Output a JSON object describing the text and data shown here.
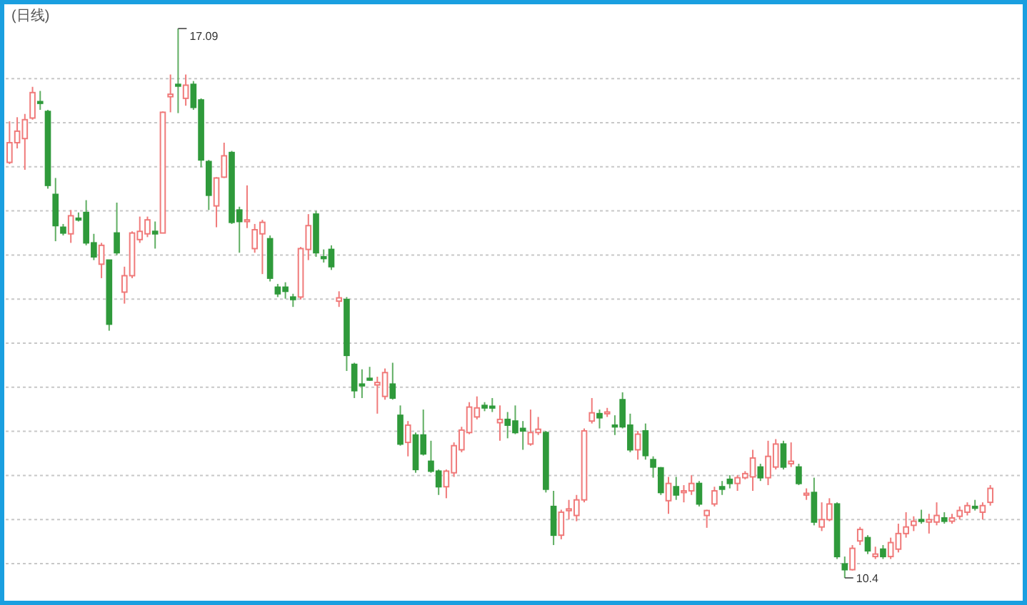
{
  "chart_data": {
    "type": "candlestick",
    "title": "(日线)",
    "grid": "y",
    "annotations": [
      "17.09",
      "10.4"
    ],
    "categories": [
      null,
      null,
      null,
      null,
      null,
      null,
      null,
      null,
      null,
      null,
      null,
      null,
      null,
      null,
      null,
      null,
      null,
      null,
      null,
      null,
      null,
      null,
      null,
      null,
      null,
      null,
      null,
      null,
      null,
      null,
      null,
      null,
      null,
      null,
      null,
      null,
      null,
      null,
      null,
      null,
      null,
      null,
      null,
      null,
      null,
      null,
      null,
      null,
      null,
      null,
      null,
      null,
      null,
      null,
      null,
      null,
      null,
      null,
      null,
      null,
      null,
      null,
      null,
      null,
      null,
      null,
      null,
      null,
      null,
      null,
      null,
      null,
      null,
      null,
      null,
      null,
      null,
      null,
      null,
      null,
      null,
      null,
      null,
      null,
      null,
      null,
      null,
      null,
      null,
      null,
      null,
      null,
      null,
      null,
      null,
      null,
      null,
      null,
      null,
      null,
      null,
      null,
      null,
      null,
      null,
      null,
      null,
      null,
      null,
      null,
      null,
      null,
      null,
      null,
      null,
      null,
      null,
      null,
      null,
      null,
      null,
      null,
      null,
      null,
      null,
      null,
      null,
      null,
      null
    ],
    "ohlc": [
      [
        15.46,
        15.96,
        15.44,
        15.7
      ],
      [
        15.7,
        16.01,
        15.63,
        15.84
      ],
      [
        15.75,
        16.05,
        15.37,
        15.98
      ],
      [
        16.0,
        16.38,
        15.98,
        16.31
      ],
      [
        16.2,
        16.33,
        16.1,
        16.2
      ],
      [
        16.08,
        16.1,
        15.14,
        15.18
      ],
      [
        15.07,
        15.27,
        14.5,
        14.69
      ],
      [
        14.67,
        14.71,
        14.57,
        14.6
      ],
      [
        14.59,
        14.88,
        14.48,
        14.81
      ],
      [
        14.78,
        14.85,
        14.74,
        14.78
      ],
      [
        14.85,
        15.0,
        14.45,
        14.48
      ],
      [
        14.48,
        14.59,
        14.27,
        14.31
      ],
      [
        14.22,
        14.48,
        14.05,
        14.45
      ],
      [
        14.27,
        14.27,
        13.41,
        13.49
      ],
      [
        14.6,
        14.97,
        14.33,
        14.36
      ],
      [
        13.88,
        14.19,
        13.74,
        14.08
      ],
      [
        14.08,
        14.62,
        14.05,
        14.6
      ],
      [
        14.52,
        14.8,
        14.48,
        14.62
      ],
      [
        14.59,
        14.8,
        14.55,
        14.76
      ],
      [
        14.62,
        14.74,
        14.41,
        14.59
      ],
      [
        14.6,
        16.08,
        14.6,
        16.07
      ],
      [
        16.26,
        16.53,
        16.07,
        16.29
      ],
      [
        16.41,
        17.09,
        16.06,
        16.4
      ],
      [
        16.24,
        16.53,
        16.15,
        16.4
      ],
      [
        16.41,
        16.45,
        16.1,
        16.13
      ],
      [
        16.22,
        16.24,
        15.4,
        15.49
      ],
      [
        15.47,
        15.49,
        14.88,
        15.06
      ],
      [
        14.93,
        15.28,
        14.67,
        15.27
      ],
      [
        15.28,
        15.7,
        15.27,
        15.54
      ],
      [
        15.58,
        15.6,
        14.71,
        14.73
      ],
      [
        14.88,
        14.92,
        14.36,
        14.74
      ],
      [
        14.74,
        15.18,
        14.66,
        14.76
      ],
      [
        14.41,
        14.71,
        14.36,
        14.64
      ],
      [
        14.59,
        14.76,
        14.1,
        14.73
      ],
      [
        14.53,
        14.57,
        14.01,
        14.05
      ],
      [
        13.94,
        13.98,
        13.82,
        13.86
      ],
      [
        13.94,
        14.0,
        13.8,
        13.89
      ],
      [
        13.82,
        13.86,
        13.7,
        13.79
      ],
      [
        13.82,
        14.43,
        13.79,
        14.41
      ],
      [
        14.4,
        14.83,
        14.27,
        14.69
      ],
      [
        14.83,
        14.87,
        14.31,
        14.36
      ],
      [
        14.31,
        14.4,
        14.24,
        14.29
      ],
      [
        14.4,
        14.45,
        14.15,
        14.19
      ],
      [
        13.77,
        13.89,
        13.7,
        13.81
      ],
      [
        13.79,
        13.82,
        12.92,
        13.11
      ],
      [
        13.0,
        13.02,
        12.59,
        12.68
      ],
      [
        12.76,
        12.94,
        12.59,
        12.76
      ],
      [
        12.83,
        12.97,
        12.8,
        12.81
      ],
      [
        12.75,
        12.85,
        12.4,
        12.78
      ],
      [
        12.61,
        12.95,
        12.57,
        12.9
      ],
      [
        12.76,
        13.02,
        12.57,
        12.59
      ],
      [
        12.38,
        12.5,
        12.01,
        12.03
      ],
      [
        12.05,
        12.31,
        11.88,
        12.26
      ],
      [
        12.14,
        12.17,
        11.68,
        11.72
      ],
      [
        12.14,
        12.45,
        11.89,
        11.91
      ],
      [
        11.82,
        12.07,
        11.68,
        11.7
      ],
      [
        11.7,
        11.72,
        11.41,
        11.51
      ],
      [
        11.51,
        11.72,
        11.37,
        11.7
      ],
      [
        11.68,
        12.05,
        11.63,
        12.01
      ],
      [
        11.96,
        12.24,
        11.93,
        12.2
      ],
      [
        12.17,
        12.54,
        12.15,
        12.48
      ],
      [
        12.36,
        12.61,
        12.33,
        12.47
      ],
      [
        12.5,
        12.54,
        12.43,
        12.47
      ],
      [
        12.49,
        12.59,
        12.42,
        12.49
      ],
      [
        12.29,
        12.5,
        12.07,
        12.33
      ],
      [
        12.33,
        12.42,
        12.1,
        12.26
      ],
      [
        12.31,
        12.5,
        12.15,
        12.17
      ],
      [
        12.22,
        12.31,
        11.96,
        12.19
      ],
      [
        12.03,
        12.45,
        12.01,
        12.17
      ],
      [
        12.17,
        12.36,
        12.14,
        12.21
      ],
      [
        12.17,
        12.19,
        11.44,
        11.48
      ],
      [
        11.27,
        11.46,
        10.8,
        10.92
      ],
      [
        10.92,
        11.23,
        10.87,
        11.2
      ],
      [
        11.23,
        11.35,
        11.11,
        11.24
      ],
      [
        11.16,
        11.41,
        11.09,
        11.35
      ],
      [
        11.35,
        12.22,
        11.32,
        12.19
      ],
      [
        12.31,
        12.59,
        12.28,
        12.41
      ],
      [
        12.4,
        12.45,
        12.22,
        12.35
      ],
      [
        12.4,
        12.47,
        12.36,
        12.42
      ],
      [
        12.26,
        12.38,
        12.14,
        12.26
      ],
      [
        12.57,
        12.66,
        12.22,
        12.24
      ],
      [
        12.26,
        12.4,
        11.93,
        11.96
      ],
      [
        11.96,
        12.19,
        11.84,
        12.15
      ],
      [
        12.19,
        12.28,
        11.84,
        11.89
      ],
      [
        11.84,
        11.88,
        11.62,
        11.75
      ],
      [
        11.74,
        11.75,
        11.41,
        11.44
      ],
      [
        11.34,
        11.63,
        11.18,
        11.55
      ],
      [
        11.51,
        11.63,
        11.35,
        11.41
      ],
      [
        11.44,
        11.53,
        11.32,
        11.46
      ],
      [
        11.46,
        11.65,
        11.41,
        11.55
      ],
      [
        11.55,
        11.58,
        11.27,
        11.3
      ],
      [
        11.16,
        11.23,
        11.01,
        11.22
      ],
      [
        11.3,
        11.51,
        11.27,
        11.46
      ],
      [
        11.51,
        11.58,
        11.41,
        11.48
      ],
      [
        11.6,
        11.65,
        11.49,
        11.55
      ],
      [
        11.55,
        11.65,
        11.46,
        11.62
      ],
      [
        11.62,
        11.7,
        11.6,
        11.67
      ],
      [
        11.63,
        11.96,
        11.46,
        11.86
      ],
      [
        11.75,
        11.79,
        11.58,
        11.62
      ],
      [
        11.62,
        12.07,
        11.53,
        11.88
      ],
      [
        11.75,
        12.09,
        11.72,
        12.03
      ],
      [
        12.03,
        12.07,
        11.72,
        11.75
      ],
      [
        11.79,
        12.05,
        11.75,
        11.82
      ],
      [
        11.75,
        11.79,
        11.53,
        11.55
      ],
      [
        11.41,
        11.49,
        11.35,
        11.43
      ],
      [
        11.44,
        11.62,
        11.04,
        11.08
      ],
      [
        11.02,
        11.32,
        10.97,
        11.11
      ],
      [
        11.11,
        11.37,
        11.09,
        11.3
      ],
      [
        11.3,
        11.32,
        10.63,
        10.66
      ],
      [
        10.57,
        10.66,
        10.4,
        10.5
      ],
      [
        10.5,
        10.8,
        10.49,
        10.76
      ],
      [
        10.85,
        11.02,
        10.8,
        10.99
      ],
      [
        10.89,
        10.92,
        10.69,
        10.73
      ],
      [
        10.66,
        10.78,
        10.63,
        10.69
      ],
      [
        10.75,
        10.8,
        10.63,
        10.66
      ],
      [
        10.66,
        10.89,
        10.63,
        10.83
      ],
      [
        10.75,
        11.06,
        10.71,
        10.94
      ],
      [
        10.94,
        11.2,
        10.89,
        11.02
      ],
      [
        11.04,
        11.15,
        10.97,
        11.09
      ],
      [
        11.11,
        11.23,
        11.06,
        11.09
      ],
      [
        11.08,
        11.18,
        10.94,
        11.11
      ],
      [
        11.08,
        11.32,
        11.04,
        11.16
      ],
      [
        11.13,
        11.2,
        11.06,
        11.09
      ],
      [
        11.09,
        11.18,
        11.06,
        11.13
      ],
      [
        11.15,
        11.27,
        11.11,
        11.22
      ],
      [
        11.2,
        11.32,
        11.16,
        11.28
      ],
      [
        11.27,
        11.35,
        11.22,
        11.25
      ],
      [
        11.2,
        11.32,
        11.11,
        11.28
      ],
      [
        11.32,
        11.53,
        11.28,
        11.49
      ]
    ]
  }
}
